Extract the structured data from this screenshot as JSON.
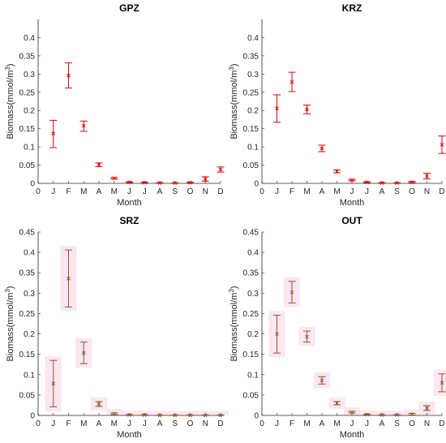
{
  "chart_data": [
    {
      "type": "scatter",
      "title": "GPZ",
      "xlabel": "Month",
      "ylabel": "Biomass(mmol/m3)",
      "ylabel_base": "Biomass(mmol/m",
      "ylabel_sup": "3",
      "ylabel_close": ")",
      "x_ticks": [
        "0",
        "J",
        "F",
        "M",
        "A",
        "M",
        "J",
        "J",
        "A",
        "S",
        "O",
        "N",
        "D"
      ],
      "y_ticks": [
        "0",
        "0.05",
        "0.1",
        "0.15",
        "0.2",
        "0.25",
        "0.3",
        "0.35",
        "0.4"
      ],
      "ylim": [
        0,
        0.45
      ],
      "xlim": [
        0,
        12
      ],
      "categories": [
        "J",
        "F",
        "M",
        "A",
        "M",
        "J",
        "J",
        "A",
        "S",
        "O",
        "N",
        "D"
      ],
      "values": [
        0.137,
        0.296,
        0.158,
        0.051,
        0.014,
        0.003,
        0.002,
        0.001,
        0.001,
        0.002,
        0.012,
        0.038
      ],
      "error_low": [
        0.098,
        0.262,
        0.143,
        0.046,
        0.012,
        0.002,
        0.001,
        0.001,
        0.0005,
        0.001,
        0.006,
        0.031
      ],
      "error_high": [
        0.173,
        0.331,
        0.171,
        0.056,
        0.016,
        0.004,
        0.003,
        0.002,
        0.0015,
        0.003,
        0.018,
        0.045
      ],
      "color": "#e8000b",
      "shade": false
    },
    {
      "type": "scatter",
      "title": "KRZ",
      "xlabel": "Month",
      "ylabel": "Biomass(mmol/m3)",
      "ylabel_base": "Biomass(mmol/m",
      "ylabel_sup": "3",
      "ylabel_close": ")",
      "x_ticks": [
        "0",
        "J",
        "F",
        "M",
        "A",
        "M",
        "J",
        "J",
        "A",
        "S",
        "O",
        "N",
        "D"
      ],
      "y_ticks": [
        "0",
        "0.05",
        "0.1",
        "0.15",
        "0.2",
        "0.25",
        "0.3",
        "0.35",
        "0.4"
      ],
      "ylim": [
        0,
        0.45
      ],
      "xlim": [
        0,
        12
      ],
      "categories": [
        "J",
        "F",
        "M",
        "A",
        "M",
        "J",
        "J",
        "A",
        "S",
        "O",
        "N",
        "D"
      ],
      "values": [
        0.206,
        0.278,
        0.203,
        0.096,
        0.033,
        0.009,
        0.003,
        0.001,
        0.001,
        0.003,
        0.02,
        0.106
      ],
      "error_low": [
        0.168,
        0.252,
        0.191,
        0.087,
        0.029,
        0.007,
        0.002,
        0.0005,
        0.0005,
        0.002,
        0.012,
        0.082
      ],
      "error_high": [
        0.243,
        0.305,
        0.215,
        0.105,
        0.037,
        0.011,
        0.004,
        0.002,
        0.0015,
        0.005,
        0.028,
        0.13
      ],
      "color": "#e8000b",
      "shade": false
    },
    {
      "type": "scatter",
      "title": "SRZ",
      "xlabel": "Month",
      "ylabel": "Biomass(mmol/m3)",
      "ylabel_base": "Biomass(mmol/m",
      "ylabel_sup": "3",
      "ylabel_close": ")",
      "x_ticks": [
        "0",
        "J",
        "F",
        "M",
        "A",
        "M",
        "J",
        "J",
        "A",
        "S",
        "O",
        "N",
        "D"
      ],
      "y_ticks": [
        "0",
        "0.05",
        "0.1",
        "0.15",
        "0.2",
        "0.25",
        "0.3",
        "0.35",
        "0.4",
        "0.45"
      ],
      "ylim": [
        0,
        0.45
      ],
      "xlim": [
        0,
        12
      ],
      "categories": [
        "J",
        "F",
        "M",
        "A",
        "M",
        "J",
        "J",
        "A",
        "S",
        "O",
        "N",
        "D"
      ],
      "values": [
        0.078,
        0.336,
        0.153,
        0.028,
        0.004,
        0.001,
        0.001,
        0.0,
        0.0,
        0.0,
        0.0,
        0.0
      ],
      "error_low": [
        0.021,
        0.266,
        0.127,
        0.022,
        0.002,
        0.0,
        0.0,
        0.0,
        0.0,
        0.0,
        0.0,
        0.0
      ],
      "error_high": [
        0.135,
        0.406,
        0.18,
        0.034,
        0.006,
        0.002,
        0.002,
        0.001,
        0.001,
        0.001,
        0.001,
        0.001
      ],
      "color": "#8b5a2b",
      "shade": true,
      "shade_color": "#fbe6f2"
    },
    {
      "type": "scatter",
      "title": "OUT",
      "xlabel": "Month",
      "ylabel": "Biomass(mmol/m3)",
      "ylabel_base": "Biomass(mmol/m",
      "ylabel_sup": "3",
      "ylabel_close": ")",
      "x_ticks": [
        "0",
        "J",
        "F",
        "M",
        "A",
        "M",
        "J",
        "J",
        "A",
        "S",
        "O",
        "N",
        "D"
      ],
      "y_ticks": [
        "0",
        "0.05",
        "0.1",
        "0.15",
        "0.2",
        "0.25",
        "0.3",
        "0.35",
        "0.4",
        "0.45"
      ],
      "ylim": [
        0,
        0.45
      ],
      "xlim": [
        0,
        12
      ],
      "categories": [
        "J",
        "F",
        "M",
        "A",
        "M",
        "J",
        "J",
        "A",
        "S",
        "O",
        "N",
        "D"
      ],
      "values": [
        0.2,
        0.302,
        0.193,
        0.086,
        0.03,
        0.008,
        0.002,
        0.001,
        0.001,
        0.003,
        0.018,
        0.08
      ],
      "error_low": [
        0.153,
        0.276,
        0.18,
        0.077,
        0.026,
        0.006,
        0.001,
        0.0005,
        0.0005,
        0.001,
        0.012,
        0.058
      ],
      "error_high": [
        0.246,
        0.329,
        0.207,
        0.095,
        0.034,
        0.01,
        0.003,
        0.0015,
        0.0015,
        0.005,
        0.024,
        0.102
      ],
      "color": "#8b5a2b",
      "shade": true,
      "shade_color": "#fbe6f2"
    }
  ]
}
